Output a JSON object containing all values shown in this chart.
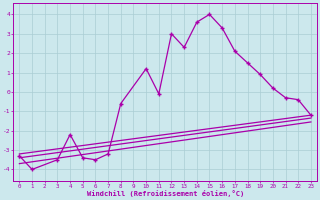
{
  "xlabel": "Windchill (Refroidissement éolien,°C)",
  "background_color": "#cce8ed",
  "grid_color": "#aacdd4",
  "line_color": "#aa00aa",
  "x_data": [
    0,
    1,
    2,
    3,
    4,
    5,
    6,
    7,
    8,
    9,
    10,
    11,
    12,
    13,
    14,
    15,
    16,
    17,
    18,
    19,
    20,
    21,
    22,
    23
  ],
  "main_line_x": [
    0,
    1,
    3,
    4,
    5,
    6,
    7,
    8,
    10,
    11,
    12,
    13,
    14,
    15,
    16,
    17,
    18,
    19,
    20,
    21,
    22,
    23
  ],
  "main_line_y": [
    -3.3,
    -4.0,
    -3.5,
    -2.2,
    -3.4,
    -3.5,
    -3.2,
    -0.6,
    1.2,
    -0.1,
    3.0,
    2.3,
    3.6,
    4.0,
    3.3,
    2.1,
    1.5,
    0.9,
    0.2,
    -0.3,
    -0.4,
    -1.2
  ],
  "trend_lines": [
    {
      "x": [
        0,
        23
      ],
      "y": [
        -3.2,
        -1.2
      ]
    },
    {
      "x": [
        0,
        23
      ],
      "y": [
        -3.4,
        -1.35
      ]
    },
    {
      "x": [
        0,
        23
      ],
      "y": [
        -3.7,
        -1.55
      ]
    }
  ],
  "ylim": [
    -4.6,
    4.6
  ],
  "xlim": [
    -0.5,
    23.5
  ],
  "yticks": [
    -4,
    -3,
    -2,
    -1,
    0,
    1,
    2,
    3,
    4
  ],
  "xticks": [
    0,
    1,
    2,
    3,
    4,
    5,
    6,
    7,
    8,
    9,
    10,
    11,
    12,
    13,
    14,
    15,
    16,
    17,
    18,
    19,
    20,
    21,
    22,
    23
  ]
}
